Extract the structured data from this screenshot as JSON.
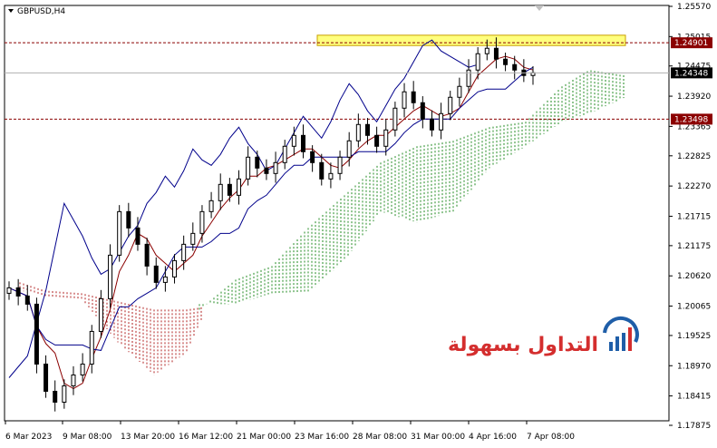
{
  "chart_data": {
    "type": "candlestick",
    "title": "GBPUSD,H4",
    "symbol": "GBPUSD",
    "timeframe": "H4",
    "ylim": [
      1.17875,
      1.2557
    ],
    "y_ticks": [
      "1.25570",
      "1.25015",
      "1.24475",
      "1.23920",
      "1.23365",
      "1.22825",
      "1.22270",
      "1.21715",
      "1.21175",
      "1.20620",
      "1.20065",
      "1.19525",
      "1.18970",
      "1.18415",
      "1.17875"
    ],
    "x_ticks": [
      "6 Mar 2023",
      "9 Mar 08:00",
      "13 Mar 20:00",
      "16 Mar 12:00",
      "21 Mar 00:00",
      "23 Mar 16:00",
      "28 Mar 08:00",
      "31 Mar 00:00",
      "4 Apr 16:00",
      "7 Apr 08:00"
    ],
    "current_price": "1.24348",
    "levels": [
      {
        "label": "1.24901",
        "value": 1.24901,
        "color": "#8b0000"
      },
      {
        "label": "1.23498",
        "value": 1.23498,
        "color": "#8b0000"
      }
    ],
    "resistance_zone": [
      1.2485,
      1.2504
    ],
    "candle_closes": [
      1.204,
      1.2025,
      1.201,
      1.19,
      1.185,
      1.183,
      1.186,
      1.188,
      1.19,
      1.196,
      1.202,
      1.21,
      1.218,
      1.215,
      1.212,
      1.208,
      1.205,
      1.206,
      1.209,
      1.212,
      1.214,
      1.218,
      1.22,
      1.223,
      1.221,
      1.224,
      1.228,
      1.226,
      1.225,
      1.227,
      1.23,
      1.232,
      1.229,
      1.227,
      1.224,
      1.225,
      1.228,
      1.231,
      1.234,
      1.232,
      1.23,
      1.233,
      1.237,
      1.24,
      1.238,
      1.235,
      1.233,
      1.236,
      1.239,
      1.241,
      1.244,
      1.247,
      1.248,
      1.246,
      1.245,
      1.244,
      1.243,
      1.2435
    ],
    "colors": {
      "bull": "#000000",
      "bear": "#000000",
      "kijun": "#00008b",
      "tenkan": "#8b0000",
      "cloud_bull": "#228b22",
      "cloud_bear": "#b22222",
      "level": "#8b0000",
      "zone_fill": "#ffff66",
      "zone_stroke": "#c8a000",
      "price_line": "#b0b0b0"
    }
  },
  "logo": {
    "text": "التداول بسهولة",
    "color_primary": "#d42e2e",
    "color_secondary": "#1f5ea8"
  }
}
